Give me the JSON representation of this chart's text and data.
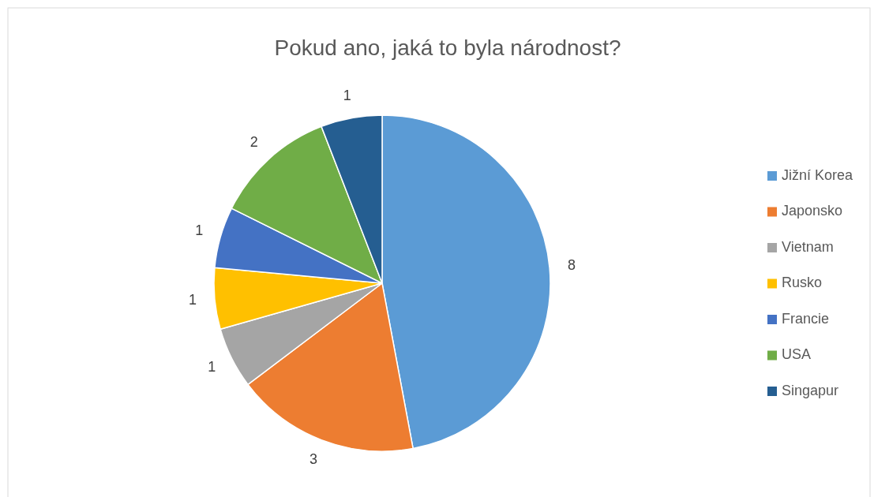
{
  "chart_data": {
    "type": "pie",
    "title": "Pokud ano, jaká to byla národnost?",
    "categories": [
      "Jižní Korea",
      "Japonsko",
      "Vietnam",
      "Rusko",
      "Francie",
      "USA",
      "Singapur"
    ],
    "values": [
      8,
      3,
      1,
      1,
      1,
      2,
      1
    ],
    "colors": [
      "#5b9bd5",
      "#ed7d31",
      "#a5a5a5",
      "#ffc000",
      "#4472c4",
      "#70ad47",
      "#255e91"
    ],
    "data_labels": true,
    "legend": "right"
  }
}
